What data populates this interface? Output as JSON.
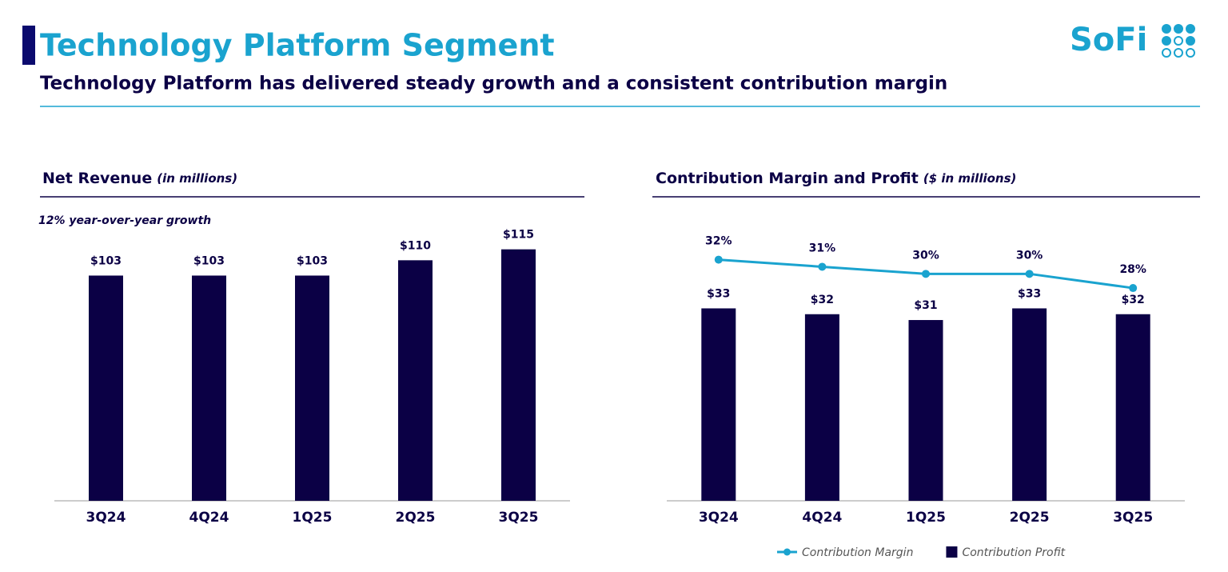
{
  "header": {
    "title": "Technology Platform Segment",
    "subtitle": "Technology Platform has delivered steady growth and a consistent contribution margin",
    "logo": "SoFi"
  },
  "chart_data": [
    {
      "type": "bar",
      "title": "Net Revenue",
      "subtitle": "(in millions)",
      "annotation": "12% year-over-year growth",
      "categories": [
        "3Q24",
        "4Q24",
        "1Q25",
        "2Q25",
        "3Q25"
      ],
      "values": [
        103,
        103,
        103,
        110,
        115
      ],
      "value_labels": [
        "$103",
        "$103",
        "$103",
        "$110",
        "$115"
      ],
      "color": "#0b0045",
      "ylim": [
        0,
        120
      ]
    },
    {
      "type": "bar",
      "title": "Contribution Margin and Profit",
      "subtitle": "($ in millions)",
      "categories": [
        "3Q24",
        "4Q24",
        "1Q25",
        "2Q25",
        "3Q25"
      ],
      "series": [
        {
          "name": "Contribution Margin",
          "type": "line",
          "axis": "y2",
          "color": "#1aa3cf",
          "values": [
            32,
            31,
            30,
            30,
            28
          ],
          "value_labels": [
            "32%",
            "31%",
            "30%",
            "30%",
            "28%"
          ]
        },
        {
          "name": "Contribution Profit",
          "type": "bar",
          "color": "#0b0045",
          "values": [
            33,
            32,
            31,
            33,
            32
          ],
          "value_labels": [
            "$33",
            "$32",
            "$31",
            "$33",
            "$32"
          ]
        }
      ],
      "ylim": [
        0,
        45
      ],
      "y2lim": [
        -2,
        35
      ],
      "legend": "bottom"
    }
  ]
}
